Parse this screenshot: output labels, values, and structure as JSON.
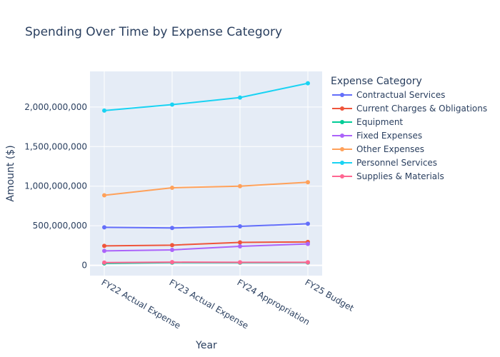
{
  "chart_data": {
    "type": "line",
    "title": "Spending Over Time by Expense Category",
    "xlabel": "Year",
    "ylabel": "Amount ($)",
    "legend_title": "Expense Category",
    "legend_position": "right",
    "grid": true,
    "ylim": [
      -130000000,
      2450000000
    ],
    "yticks": [
      0,
      500000000,
      1000000000,
      1500000000,
      2000000000
    ],
    "ytick_labels": [
      "0",
      "500,000,000",
      "1,000,000,000",
      "1,500,000,000",
      "2,000,000,000"
    ],
    "categories": [
      "FY22 Actual Expense",
      "FY23 Actual Expense",
      "FY24 Appropriation",
      "FY25 Budget"
    ],
    "series": [
      {
        "name": "Contractual Services",
        "color": "#636efa",
        "values": [
          480000000,
          472000000,
          492000000,
          525000000
        ]
      },
      {
        "name": "Current Charges & Obligations",
        "color": "#EF553B",
        "values": [
          245000000,
          255000000,
          290000000,
          295000000
        ]
      },
      {
        "name": "Equipment",
        "color": "#00cc96",
        "values": [
          25000000,
          35000000,
          33000000,
          35000000
        ]
      },
      {
        "name": "Fixed Expenses",
        "color": "#ab63fa",
        "values": [
          182000000,
          195000000,
          240000000,
          270000000
        ]
      },
      {
        "name": "Other Expenses",
        "color": "#FFA15A",
        "values": [
          885000000,
          980000000,
          1000000000,
          1050000000
        ]
      },
      {
        "name": "Personnel Services",
        "color": "#19d3f3",
        "values": [
          1955000000,
          2030000000,
          2120000000,
          2300000000
        ]
      },
      {
        "name": "Supplies & Materials",
        "color": "#FF6692",
        "values": [
          35000000,
          40000000,
          38000000,
          38000000
        ]
      }
    ]
  }
}
